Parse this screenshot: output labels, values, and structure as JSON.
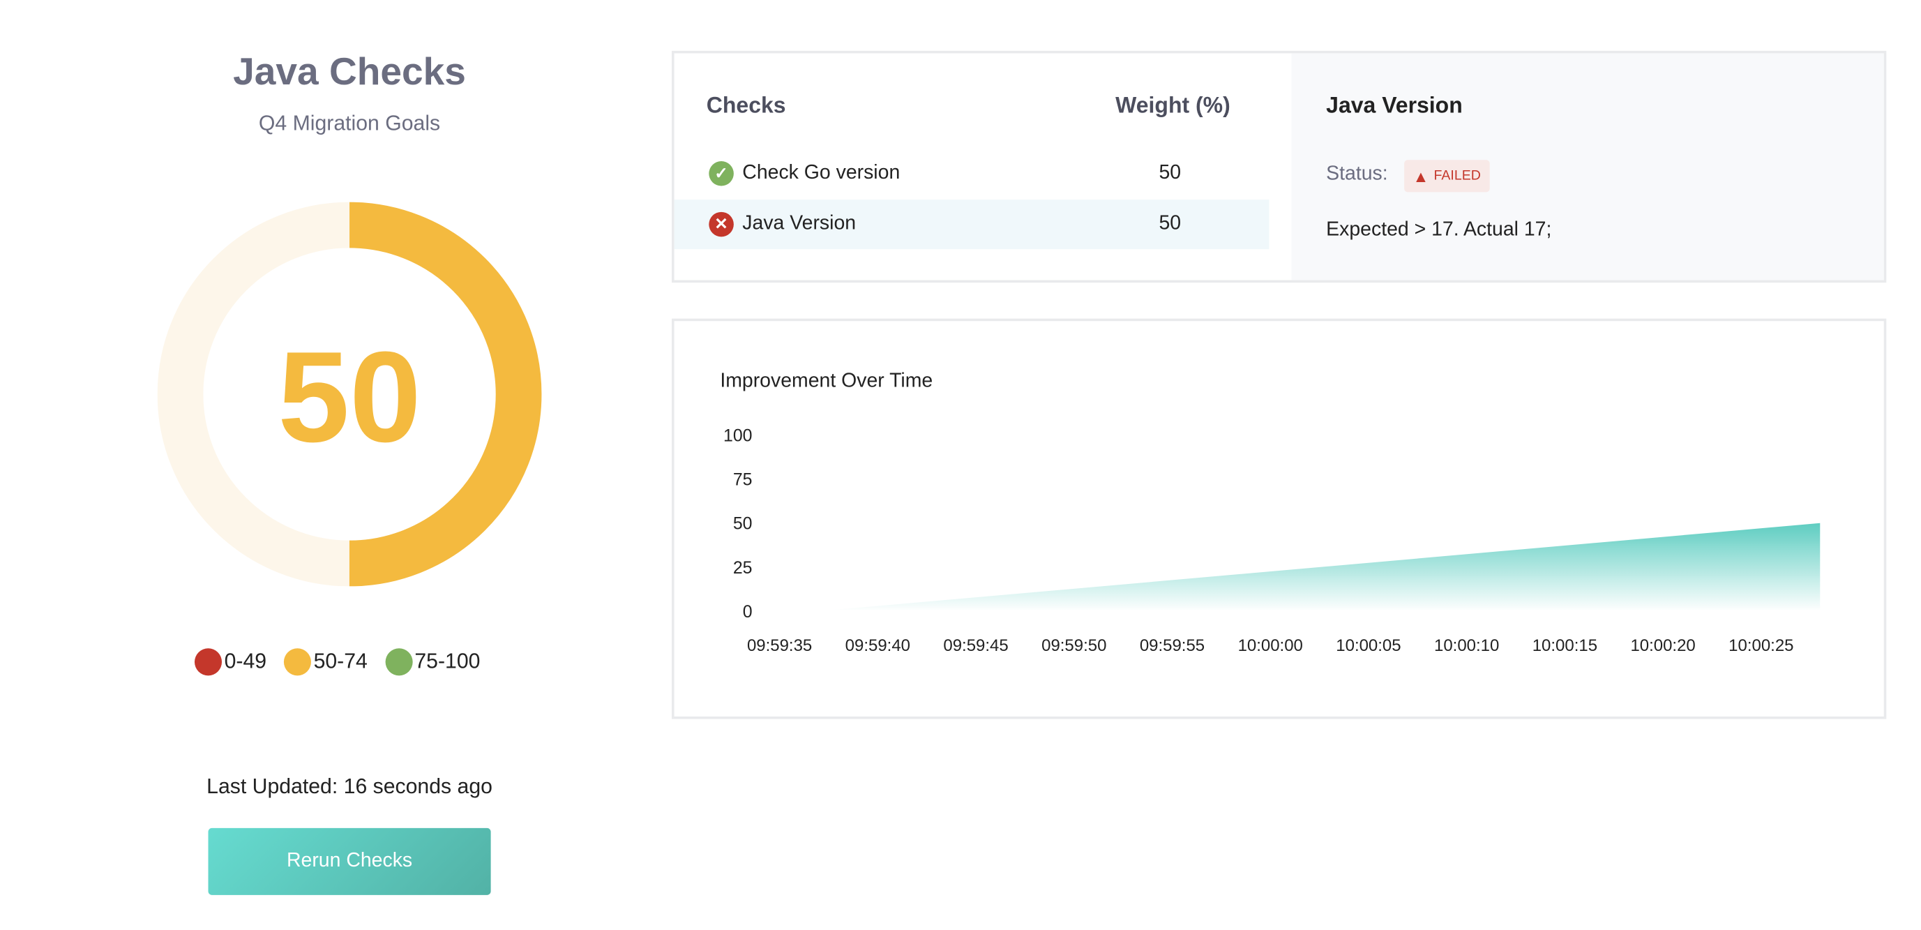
{
  "summary": {
    "title": "Java Checks",
    "subtitle": "Q4 Migration Goals",
    "score": "50",
    "score_percent": 50,
    "score_color": "#F4BA3F",
    "track_color": "#FDF6EA",
    "legend": [
      {
        "label": "0-49",
        "color": "#C4372B"
      },
      {
        "label": "50-74",
        "color": "#F4BA3F"
      },
      {
        "label": "75-100",
        "color": "#7FB25E"
      }
    ],
    "last_updated": "Last Updated: 16 seconds ago",
    "rerun_label": "Rerun Checks"
  },
  "checks": {
    "header_name": "Checks",
    "header_weight": "Weight (%)",
    "rows": [
      {
        "name": "Check Go version",
        "weight": "50",
        "status": "passed",
        "icon": "check-circle-icon",
        "color": "#7FB25E"
      },
      {
        "name": "Java Version",
        "weight": "50",
        "status": "failed",
        "icon": "x-circle-icon",
        "color": "#C4372B"
      }
    ]
  },
  "detail": {
    "title": "Java Version",
    "status_label": "Status:",
    "status_badge": "FAILED",
    "message": "Expected > 17. Actual 17;"
  },
  "chart_data": {
    "type": "area",
    "title": "Improvement Over Time",
    "xlabel": "",
    "ylabel": "",
    "x_ticks": [
      "09:59:35",
      "09:59:40",
      "09:59:45",
      "09:59:50",
      "09:59:55",
      "10:00:00",
      "10:00:05",
      "10:00:10",
      "10:00:15",
      "10:00:20",
      "10:00:25"
    ],
    "y_ticks": [
      "100",
      "75",
      "50",
      "25",
      "0"
    ],
    "ylim": [
      0,
      100
    ],
    "grid": false,
    "color": "#5ECDC1",
    "points": [
      {
        "x": "09:59:37",
        "y": 0
      },
      {
        "x": "10:00:28",
        "y": 50
      }
    ]
  }
}
